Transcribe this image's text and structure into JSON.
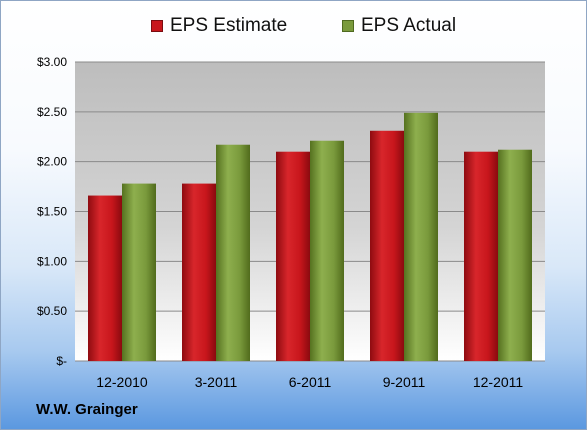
{
  "footer": {
    "company": "W.W. Grainger"
  },
  "colors": {
    "estimate": "#c8161c",
    "actual": "#7a9a3c",
    "plot_bg_top": "#bdbdbd",
    "plot_bg_bottom": "#ffffff",
    "gridline": "#8a8a8a"
  },
  "chart_data": {
    "type": "bar",
    "categories": [
      "12-2010",
      "3-2011",
      "6-2011",
      "9-2011",
      "12-2011"
    ],
    "series": [
      {
        "name": "EPS Estimate",
        "values": [
          1.66,
          1.78,
          2.1,
          2.31,
          2.1
        ]
      },
      {
        "name": "EPS Actual",
        "values": [
          1.78,
          2.17,
          2.21,
          2.49,
          2.12
        ]
      }
    ],
    "ylim": [
      0,
      3.0
    ],
    "yticks": [
      0,
      0.5,
      1.0,
      1.5,
      2.0,
      2.5,
      3.0
    ],
    "ytick_labels": [
      "$-",
      "$0.50",
      "$1.00",
      "$1.50",
      "$2.00",
      "$2.50",
      "$3.00"
    ],
    "legend": "top",
    "grid": true
  }
}
